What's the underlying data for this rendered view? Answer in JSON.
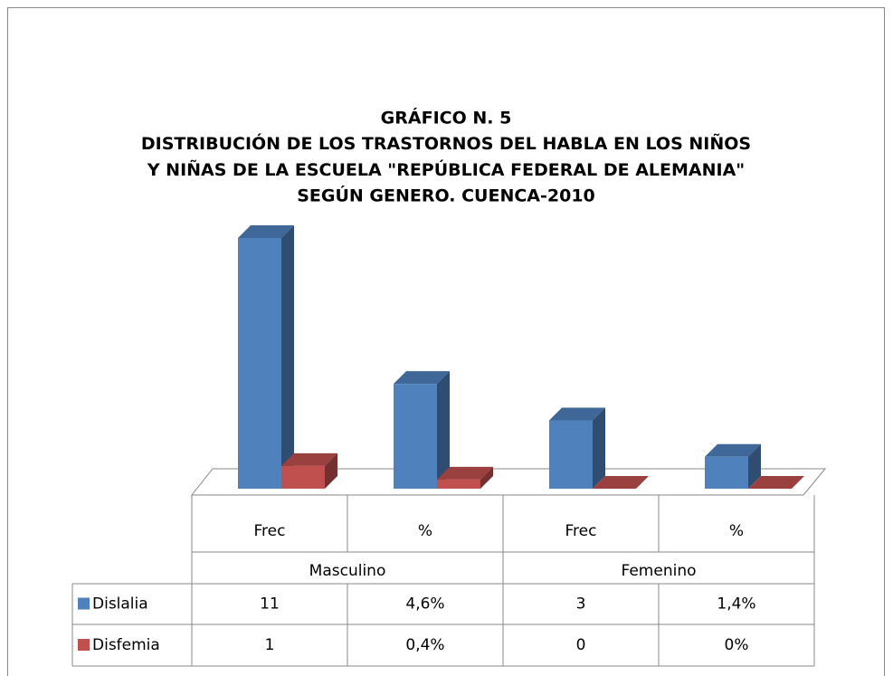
{
  "chart_data": {
    "type": "bar3d",
    "title": [
      "GRÁFICO N. 5",
      "DISTRIBUCIÓN DE LOS TRASTORNOS DEL HABLA EN LOS NIÑOS",
      "Y NIÑAS DE LA ESCUELA \"REPÚBLICA FEDERAL DE ALEMANIA\"",
      "SEGÚN GENERO. CUENCA-2010"
    ],
    "categories": [
      "Frec",
      "%",
      "Frec",
      "%"
    ],
    "groups": [
      "Masculino",
      "Femenino"
    ],
    "series": [
      {
        "name": "Dislalia",
        "color": "#4f81bd",
        "values": [
          11,
          4.6,
          3,
          1.4
        ],
        "value_labels": [
          "11",
          "4,6%",
          "3",
          "1,4%"
        ]
      },
      {
        "name": "Disfemia",
        "color": "#c0504d",
        "values": [
          1,
          0.4,
          0,
          0
        ],
        "value_labels": [
          "1",
          "0,4%",
          "0",
          "0%"
        ]
      }
    ]
  }
}
